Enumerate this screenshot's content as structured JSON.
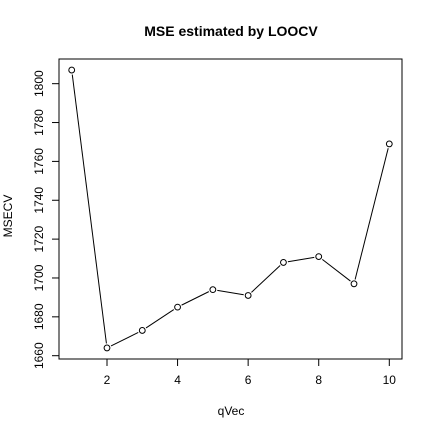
{
  "chart_data": {
    "type": "line",
    "title": "MSE estimated by LOOCV",
    "xlabel": "qVec",
    "ylabel": "MSECV",
    "x": [
      1,
      2,
      3,
      4,
      5,
      6,
      7,
      8,
      9,
      10
    ],
    "series": [
      {
        "values": [
          1807,
          1664,
          1673,
          1685,
          1694,
          1691,
          1708,
          1711,
          1697,
          1769
        ]
      }
    ],
    "xlim": [
      0.64,
      10.36
    ],
    "ylim": [
      1658.3,
      1812.7
    ],
    "xticks": [
      2,
      4,
      6,
      8,
      10
    ],
    "yticks": [
      1660,
      1680,
      1700,
      1720,
      1740,
      1760,
      1780,
      1800
    ],
    "grid": false,
    "colors": {
      "line": "#000000",
      "marker_fill": "#ffffff"
    }
  }
}
